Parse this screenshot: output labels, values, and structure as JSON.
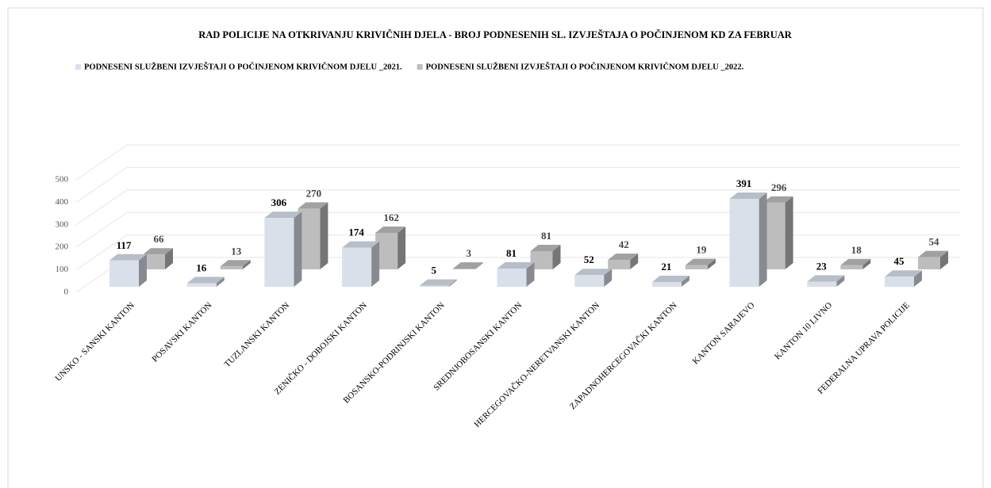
{
  "chart_data": {
    "type": "bar3d",
    "title": "RAD POLICIJE NA OTKRIVANJU KRIVIČNIH DJELA  -  BROJ PODNESENIH SL. IZVJEŠTAJA O POČINJENOM KD ZA  FEBRUAR",
    "categories": [
      "UNSKO - SANSKI KANTON",
      "POSAVSKI KANTON",
      "TUZLANSKI KANTON",
      "ZENIČKO - DOBOJSKI KANTON",
      "BOSANSKO-PODRINJSKI KANTON",
      "SREDNJOBOSANSKI KANTON",
      "HERCEGOVAČKO-NERETVANSKI KANTON",
      "ZAPADNOHERCEGOVAČKI KANTON",
      "KANTON SARAJEVO",
      "KANTON 10 LIVNO",
      "FEDERALNA UPRAVA POLICIJE"
    ],
    "series": [
      {
        "name": "PODNESENI SLUŽBENI IZVJEŠTAJI O POČINJENOM KRIVIČNOM DJELU _2021.",
        "color": "#d9e0ea",
        "values": [
          117,
          16,
          306,
          174,
          5,
          81,
          52,
          21,
          391,
          23,
          45
        ]
      },
      {
        "name": "PODNESENI SLUŽBENI IZVJEŠTAJI O POČINJENOM KRIVIČNOM DJELU _2022.",
        "color": "#bdbdbd",
        "values": [
          66,
          13,
          270,
          162,
          3,
          81,
          42,
          19,
          296,
          18,
          54
        ]
      }
    ],
    "ylim": [
      0,
      500
    ],
    "yticks": [
      0,
      100,
      200,
      300,
      400,
      500
    ],
    "grid": true,
    "legend": "top"
  }
}
